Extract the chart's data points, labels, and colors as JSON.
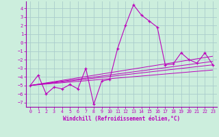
{
  "xlabel": "Windchill (Refroidissement éolien,°C)",
  "bg_color": "#cceedd",
  "grid_color": "#aacccc",
  "line_color": "#bb00bb",
  "spine_color": "#9900aa",
  "xlim": [
    -0.5,
    23.5
  ],
  "ylim": [
    -7.5,
    4.8
  ],
  "yticks": [
    -7,
    -6,
    -5,
    -4,
    -3,
    -2,
    -1,
    0,
    1,
    2,
    3,
    4
  ],
  "xticks": [
    0,
    1,
    2,
    3,
    4,
    5,
    6,
    7,
    8,
    9,
    10,
    11,
    12,
    13,
    14,
    15,
    16,
    17,
    18,
    19,
    20,
    21,
    22,
    23
  ],
  "series": [
    [
      0,
      -5.0
    ],
    [
      1,
      -3.8
    ],
    [
      2,
      -6.0
    ],
    [
      3,
      -5.2
    ],
    [
      4,
      -5.4
    ],
    [
      5,
      -4.9
    ],
    [
      6,
      -5.4
    ],
    [
      7,
      -3.0
    ],
    [
      8,
      -7.2
    ],
    [
      9,
      -4.5
    ],
    [
      10,
      -4.3
    ],
    [
      11,
      -0.7
    ],
    [
      12,
      2.0
    ],
    [
      13,
      4.4
    ],
    [
      14,
      3.2
    ],
    [
      15,
      2.5
    ],
    [
      16,
      1.8
    ],
    [
      17,
      -2.6
    ],
    [
      18,
      -2.5
    ],
    [
      19,
      -1.2
    ],
    [
      20,
      -2.0
    ],
    [
      21,
      -2.4
    ],
    [
      22,
      -1.2
    ],
    [
      23,
      -2.6
    ]
  ],
  "trend_lines": [
    [
      [
        0,
        23
      ],
      [
        -5.0,
        -3.2
      ]
    ],
    [
      [
        0,
        23
      ],
      [
        -5.0,
        -2.6
      ]
    ],
    [
      [
        0,
        23
      ],
      [
        -5.0,
        -2.2
      ]
    ],
    [
      [
        0,
        23
      ],
      [
        -5.0,
        -1.6
      ]
    ]
  ]
}
